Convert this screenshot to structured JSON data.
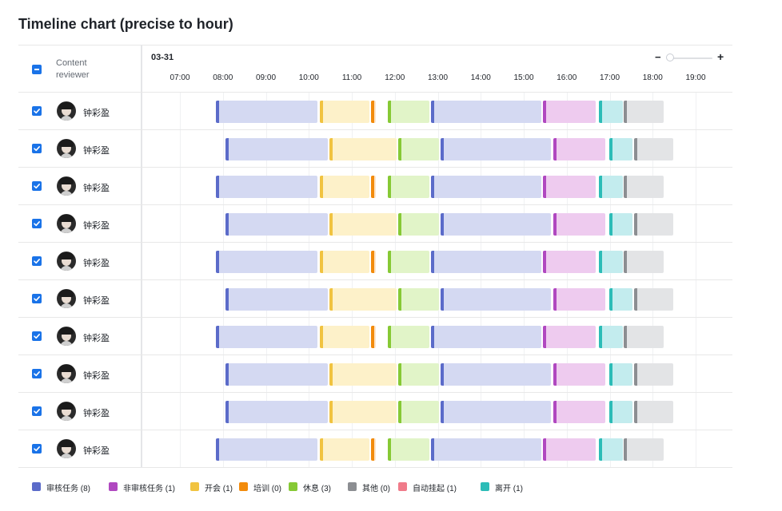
{
  "title": "Timeline chart (precise to hour)",
  "header": {
    "column_label": "Content reviewer",
    "date": "03-31"
  },
  "zoom": {
    "minus": "−",
    "plus": "+"
  },
  "time_ticks": [
    "07:00",
    "08:00",
    "09:00",
    "10:00",
    "11:00",
    "12:00",
    "13:00",
    "14:00",
    "15:00",
    "16:00",
    "17:00",
    "18:00",
    "19:00"
  ],
  "palette": {
    "审核任务": {
      "fill": "#d4d9f2",
      "cap": "#5b6bc9"
    },
    "非审核任务": {
      "fill": "#eecbef",
      "cap": "#b048c0"
    },
    "开会": {
      "fill": "#fdf1c9",
      "cap": "#f1c340"
    },
    "培训": {
      "fill": "#fde3c6",
      "cap": "#f28b0c"
    },
    "休息": {
      "fill": "#e1f4c8",
      "cap": "#86c935"
    },
    "其他": {
      "fill": "#e3e4e6",
      "cap": "#8c8e92"
    },
    "自动挂起": {
      "fill": "#fbd5da",
      "cap": "#f07b8a"
    },
    "离开": {
      "fill": "#c3ecee",
      "cap": "#2cbcb7"
    }
  },
  "rows": [
    {
      "name": "钟彩盈",
      "pattern": "A"
    },
    {
      "name": "钟彩盈",
      "pattern": "B"
    },
    {
      "name": "钟彩盈",
      "pattern": "A"
    },
    {
      "name": "钟彩盈",
      "pattern": "B"
    },
    {
      "name": "钟彩盈",
      "pattern": "A"
    },
    {
      "name": "钟彩盈",
      "pattern": "B"
    },
    {
      "name": "钟彩盈",
      "pattern": "A"
    },
    {
      "name": "钟彩盈",
      "pattern": "B"
    },
    {
      "name": "钟彩盈",
      "pattern": "B"
    },
    {
      "name": "钟彩盈",
      "pattern": "A"
    }
  ],
  "patterns": {
    "A": [
      {
        "type": "审核任务",
        "start": "07:50",
        "end": "10:12"
      },
      {
        "type": "开会",
        "start": "10:15",
        "end": "11:25"
      },
      {
        "type": "培训",
        "start": "11:27",
        "end": "11:33"
      },
      {
        "type": "休息",
        "start": "11:50",
        "end": "12:48"
      },
      {
        "type": "审核任务",
        "start": "12:50",
        "end": "15:25"
      },
      {
        "type": "非审核任务",
        "start": "15:27",
        "end": "16:40"
      },
      {
        "type": "离开",
        "start": "16:45",
        "end": "17:18"
      },
      {
        "type": "其他",
        "start": "17:20",
        "end": "18:15"
      }
    ],
    "B": [
      {
        "type": "审核任务",
        "start": "08:04",
        "end": "10:26"
      },
      {
        "type": "开会",
        "start": "10:29",
        "end": "12:03"
      },
      {
        "type": "休息",
        "start": "12:05",
        "end": "13:02"
      },
      {
        "type": "审核任务",
        "start": "13:04",
        "end": "15:38"
      },
      {
        "type": "非审核任务",
        "start": "15:41",
        "end": "16:54"
      },
      {
        "type": "离开",
        "start": "16:59",
        "end": "17:32"
      },
      {
        "type": "其他",
        "start": "17:34",
        "end": "18:29"
      }
    ]
  },
  "legend": [
    {
      "label": "审核任务 (8)",
      "type": "审核任务"
    },
    {
      "label": "非审核任务 (1)",
      "type": "非审核任务"
    },
    {
      "label": "开会 (1)",
      "type": "开会"
    },
    {
      "label": "培训 (0)",
      "type": "培训"
    },
    {
      "label": "休息 (3)",
      "type": "休息"
    },
    {
      "label": "其他 (0)",
      "type": "其他"
    },
    {
      "label": "自动挂起 (1)",
      "type": "自动挂起"
    },
    {
      "label": "离开 (1)",
      "type": "离开"
    }
  ]
}
